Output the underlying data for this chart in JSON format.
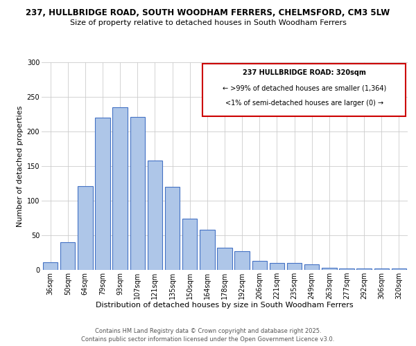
{
  "title_line1": "237, HULLBRIDGE ROAD, SOUTH WOODHAM FERRERS, CHELMSFORD, CM3 5LW",
  "title_line2": "Size of property relative to detached houses in South Woodham Ferrers",
  "xlabel": "Distribution of detached houses by size in South Woodham Ferrers",
  "ylabel": "Number of detached properties",
  "categories": [
    "36sqm",
    "50sqm",
    "64sqm",
    "79sqm",
    "93sqm",
    "107sqm",
    "121sqm",
    "135sqm",
    "150sqm",
    "164sqm",
    "178sqm",
    "192sqm",
    "206sqm",
    "221sqm",
    "235sqm",
    "249sqm",
    "263sqm",
    "277sqm",
    "292sqm",
    "306sqm",
    "320sqm"
  ],
  "values": [
    11,
    40,
    121,
    220,
    235,
    221,
    158,
    120,
    74,
    58,
    32,
    27,
    13,
    10,
    10,
    8,
    3,
    2,
    2,
    2,
    2
  ],
  "bar_color": "#aec6e8",
  "bar_edge_color": "#4472c4",
  "ylim": [
    0,
    300
  ],
  "yticks": [
    0,
    50,
    100,
    150,
    200,
    250,
    300
  ],
  "annotation_text_line1": "237 HULLBRIDGE ROAD: 320sqm",
  "annotation_text_line2": "← >99% of detached houses are smaller (1,364)",
  "annotation_text_line3": "<1% of semi-detached houses are larger (0) →",
  "annotation_box_color": "#cc0000",
  "footer_line1": "Contains HM Land Registry data © Crown copyright and database right 2025.",
  "footer_line2": "Contains public sector information licensed under the Open Government Licence v3.0.",
  "background_color": "#ffffff",
  "grid_color": "#cccccc",
  "title_fontsize": 8.5,
  "subtitle_fontsize": 8,
  "axis_label_fontsize": 8,
  "tick_fontsize": 7,
  "annotation_fontsize": 7,
  "footer_fontsize": 6
}
